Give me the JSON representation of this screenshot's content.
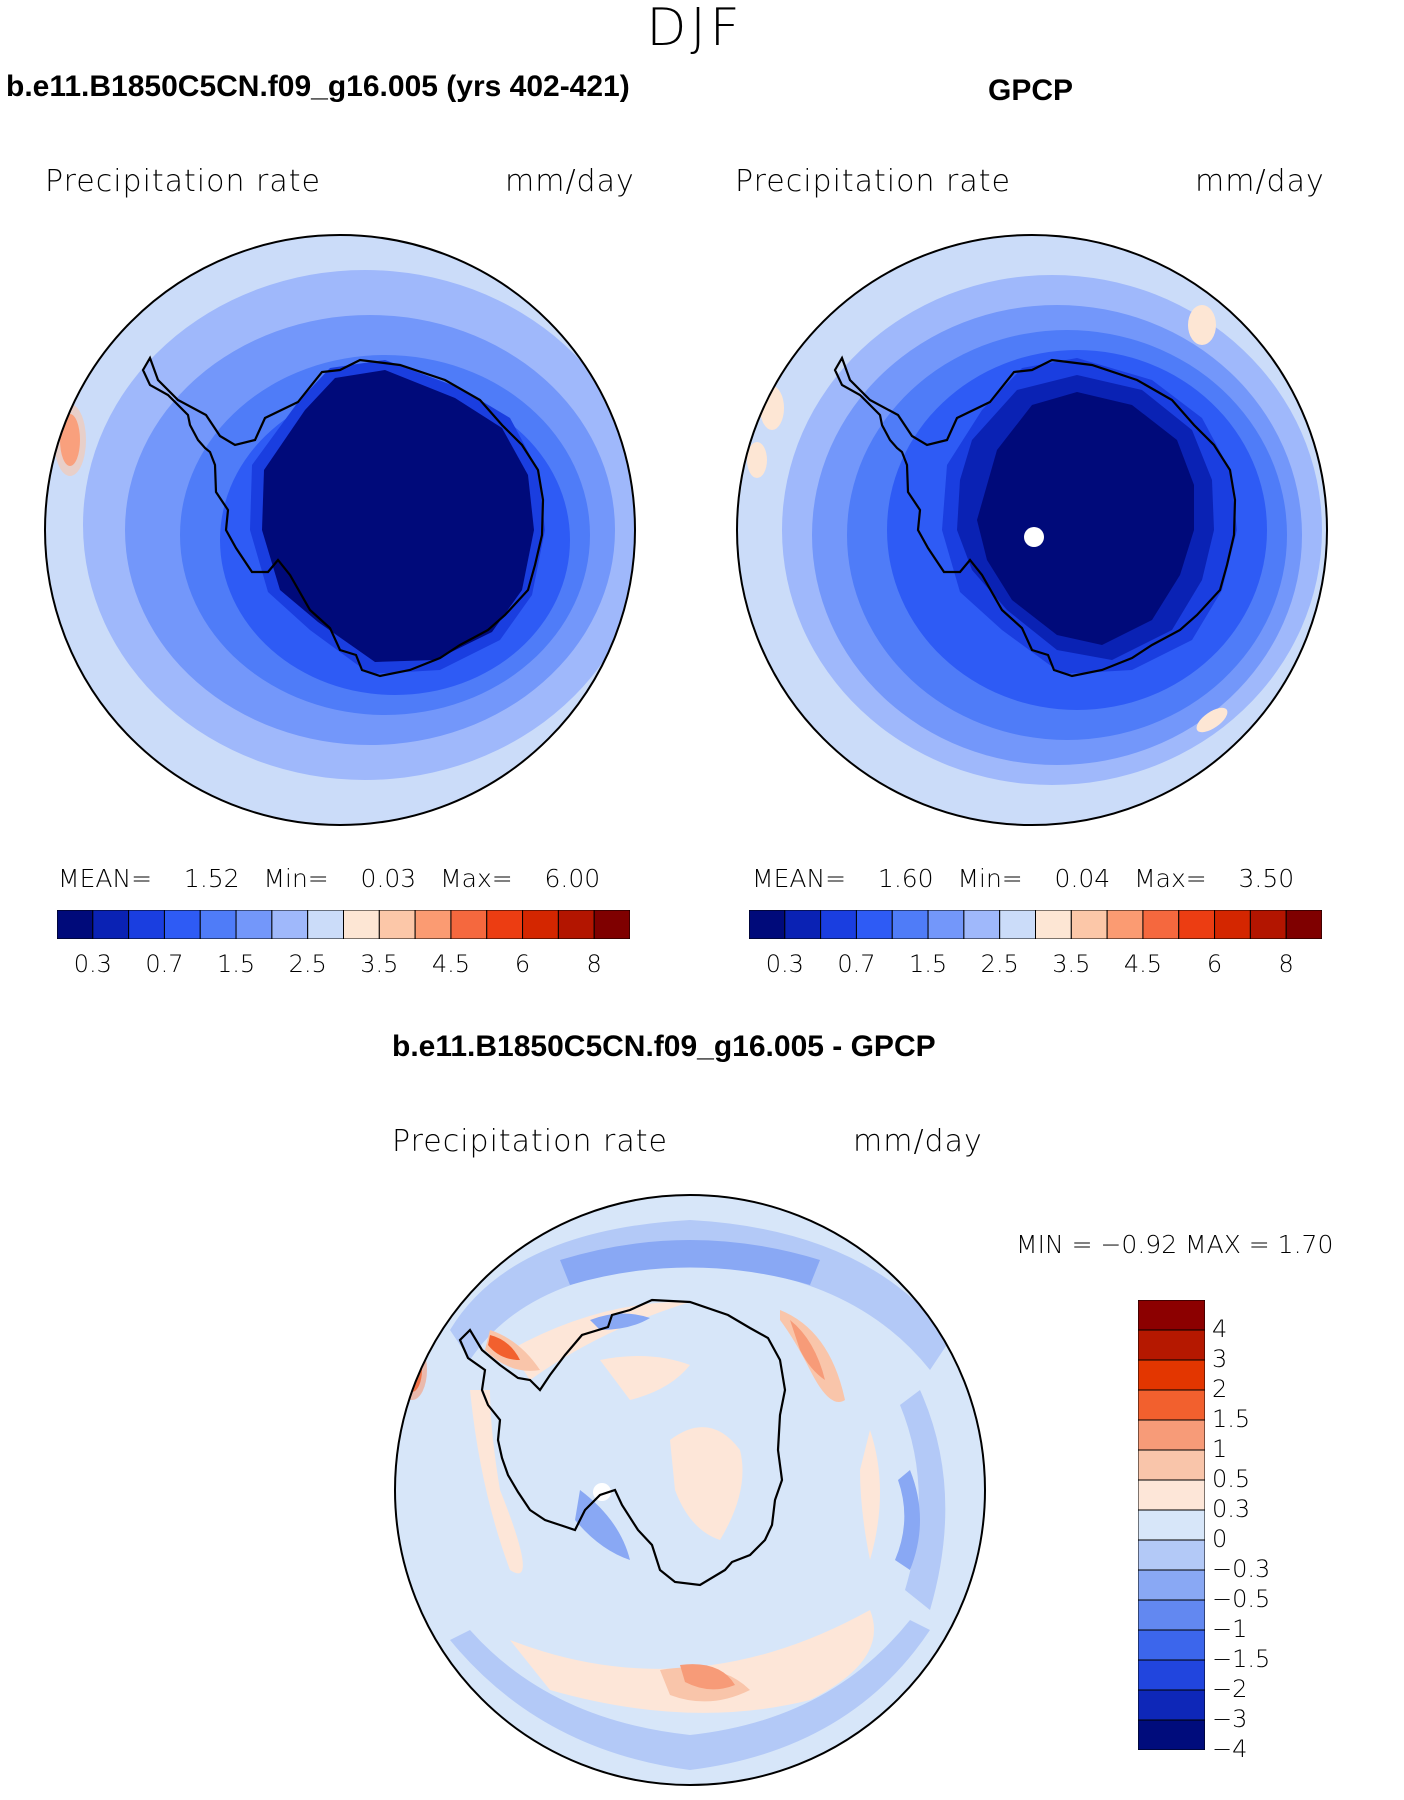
{
  "season": "DJF",
  "panels": [
    {
      "title": "b.e11.B1850C5CN.f09_g16.005 (yrs 402-421)",
      "variable": "Precipitation rate",
      "units": "mm/day",
      "stats": {
        "mean_label": "MEAN=",
        "mean": "1.52",
        "min_label": "Min=",
        "min": "0.03",
        "max_label": "Max=",
        "max": "6.00"
      }
    },
    {
      "title": "GPCP",
      "variable": "Precipitation rate",
      "units": "mm/day",
      "stats": {
        "mean_label": "MEAN=",
        "mean": "1.60",
        "min_label": "Min=",
        "min": "0.04",
        "max_label": "Max=",
        "max": "3.50"
      }
    },
    {
      "title": "b.e11.B1850C5CN.f09_g16.005 - GPCP",
      "variable": "Precipitation rate",
      "units": "mm/day",
      "stats_text": "MIN =   −0.92  MAX =     1.70"
    }
  ],
  "colorbar_abs": {
    "colors": [
      "#000a7a",
      "#0a22b4",
      "#1a3ee0",
      "#2e5bf5",
      "#4f7cf8",
      "#7397fa",
      "#9fb8fb",
      "#cbdcf9",
      "#fde6d4",
      "#fcc7a8",
      "#fb9b72",
      "#f5683e",
      "#ec3d12",
      "#d42600",
      "#b31500",
      "#7f0000"
    ],
    "labels": [
      "0.3",
      "0.7",
      "1.5",
      "2.5",
      "3.5",
      "4.5",
      "6",
      "8"
    ]
  },
  "colorbar_diff": {
    "colors": [
      "#8c0000",
      "#b51800",
      "#e33600",
      "#f2602e",
      "#f79b78",
      "#f9c5aa",
      "#fde6d8",
      "#d7e6f9",
      "#b3c9f7",
      "#89a8f4",
      "#6288f1",
      "#3c66ec",
      "#2145de",
      "#0e27b8",
      "#000c7c"
    ],
    "labels": [
      "4",
      "3",
      "2",
      "1.5",
      "1",
      "0.5",
      "0.3",
      "0",
      "−0.3",
      "−0.5",
      "−1",
      "−1.5",
      "−2",
      "−3",
      "−4"
    ]
  }
}
